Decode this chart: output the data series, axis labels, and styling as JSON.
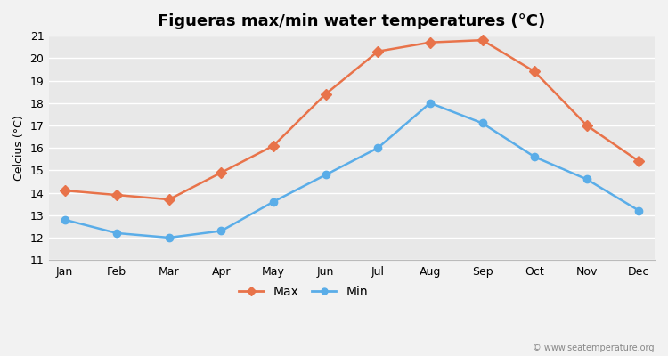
{
  "months": [
    "Jan",
    "Feb",
    "Mar",
    "Apr",
    "May",
    "Jun",
    "Jul",
    "Aug",
    "Sep",
    "Oct",
    "Nov",
    "Dec"
  ],
  "max_temps": [
    14.1,
    13.9,
    13.7,
    14.9,
    16.1,
    18.4,
    20.3,
    20.7,
    20.8,
    19.4,
    17.0,
    15.4
  ],
  "min_temps": [
    12.8,
    12.2,
    12.0,
    12.3,
    13.6,
    14.8,
    16.0,
    18.0,
    17.1,
    15.6,
    14.6,
    13.2
  ],
  "max_color": "#E8734A",
  "min_color": "#5AADE8",
  "bg_color": "#f2f2f2",
  "plot_bg_color": "#e8e8e8",
  "title": "Figueras max/min water temperatures (°C)",
  "ylabel": "Celcius (°C)",
  "ylim": [
    11,
    21
  ],
  "yticks": [
    11,
    12,
    13,
    14,
    15,
    16,
    17,
    18,
    19,
    20,
    21
  ],
  "title_fontsize": 13,
  "axis_fontsize": 9,
  "tick_fontsize": 9,
  "legend_fontsize": 10,
  "watermark": "© www.seatemperature.org",
  "line_width": 1.8,
  "marker_size": 6
}
